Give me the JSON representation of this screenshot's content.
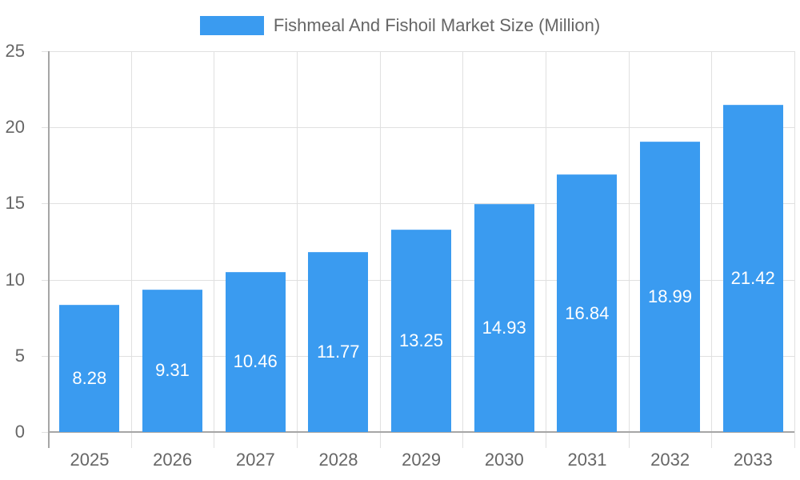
{
  "chart_data": {
    "type": "bar",
    "title": "",
    "legend": [
      "Fishmeal And Fishoil Market Size (Million)"
    ],
    "legend_position": "top",
    "categories": [
      "2025",
      "2026",
      "2027",
      "2028",
      "2029",
      "2030",
      "2031",
      "2032",
      "2033"
    ],
    "series": [
      {
        "name": "Fishmeal And Fishoil Market Size (Million)",
        "values": [
          8.28,
          9.31,
          10.46,
          11.77,
          13.25,
          14.93,
          16.84,
          18.99,
          21.42
        ],
        "color": "#3a9bf0"
      }
    ],
    "data_labels": [
      "8.28",
      "9.31",
      "10.46",
      "11.77",
      "13.25",
      "14.93",
      "16.84",
      "18.99",
      "21.42"
    ],
    "xlabel": "",
    "ylabel": "",
    "ylim": [
      0,
      25
    ],
    "yticks": [
      "0",
      "5",
      "10",
      "15",
      "20",
      "25"
    ],
    "grid": true
  }
}
